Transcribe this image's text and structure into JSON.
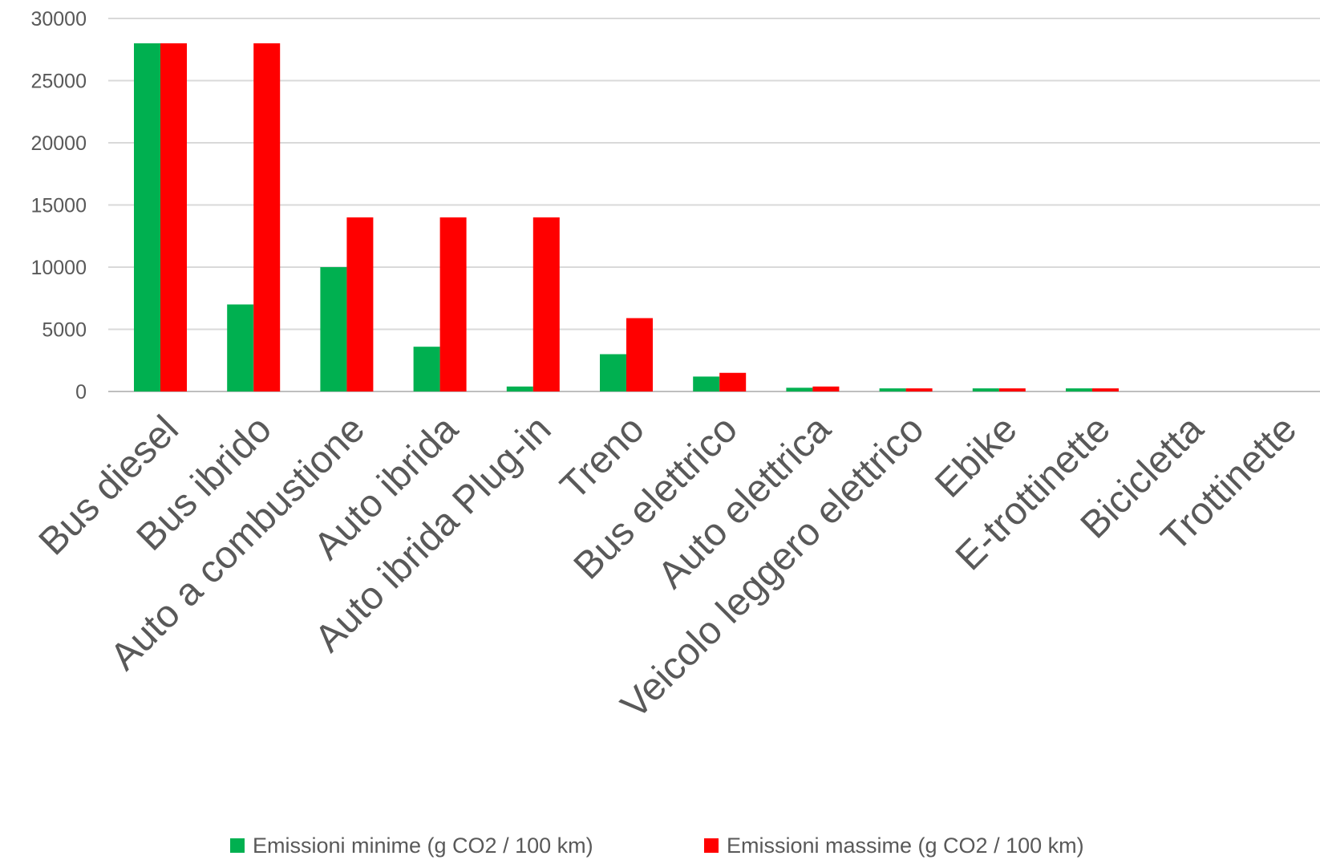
{
  "chart_data": {
    "type": "bar",
    "title": "",
    "xlabel": "",
    "ylabel": "",
    "ylim": [
      0,
      30000
    ],
    "yticks": [
      0,
      5000,
      10000,
      15000,
      20000,
      25000,
      30000
    ],
    "ytick_labels": [
      "0",
      "5000",
      "10000",
      "15000",
      "20000",
      "25000",
      "30000"
    ],
    "grid": true,
    "legend_position": "bottom",
    "categories": [
      "Bus diesel",
      "Bus ibrido",
      "Auto a combustione",
      "Auto ibrida",
      "Auto ibrida Plug-in",
      "Treno",
      "Bus elettrico",
      "Auto elettrica",
      "Veicolo leggero elettrico",
      "Ebike",
      "E-trottinette",
      "Bicicletta",
      "Trottinette"
    ],
    "series": [
      {
        "name": "Emissioni minime (g CO2 / 100 km)",
        "color": "#00b050",
        "values": [
          28000,
          7000,
          10000,
          3600,
          400,
          3000,
          1200,
          300,
          250,
          250,
          250,
          0,
          0
        ]
      },
      {
        "name": "Emissioni massime (g CO2 / 100 km)",
        "color": "#ff0000",
        "values": [
          28000,
          28000,
          14000,
          14000,
          14000,
          5900,
          1500,
          400,
          250,
          250,
          250,
          0,
          0
        ]
      }
    ]
  }
}
